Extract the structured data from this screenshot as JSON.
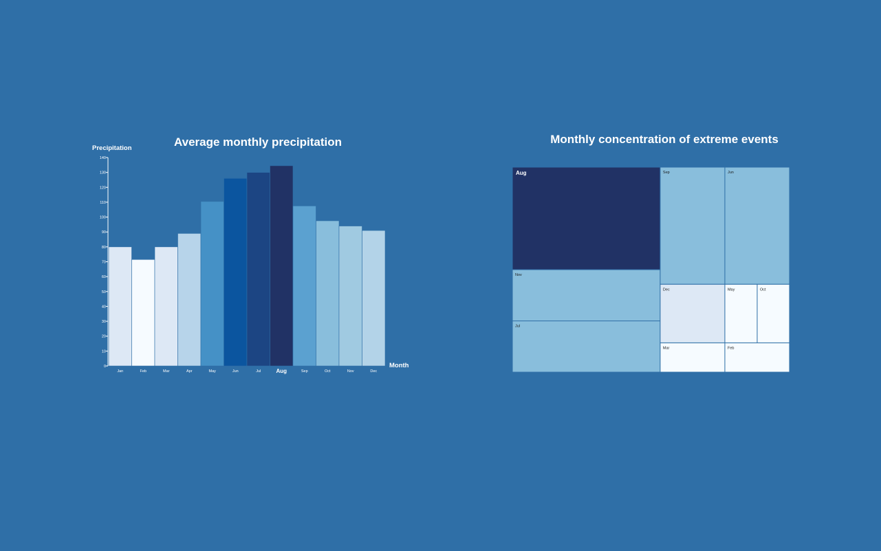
{
  "background_color": "#2f6fa7",
  "chart_data": [
    {
      "type": "bar",
      "title": "Average monthly precipitation",
      "xlabel": "Month",
      "ylabel": "Precipitation",
      "ylim": [
        0,
        140
      ],
      "yticks": [
        0,
        10,
        20,
        30,
        40,
        50,
        60,
        70,
        80,
        90,
        100,
        110,
        120,
        130,
        140
      ],
      "highlighted_category": "Aug",
      "categories": [
        "Jan",
        "Feb",
        "Mar",
        "Apr",
        "May",
        "Jun",
        "Jul",
        "Aug",
        "Sep",
        "Oct",
        "Nov",
        "Dec"
      ],
      "values": [
        80,
        71.5,
        80,
        89,
        110.5,
        126,
        130,
        134.5,
        107.5,
        97.5,
        94,
        91
      ],
      "bar_colors": [
        "#dde8f5",
        "#f6fbff",
        "#dde8f5",
        "#b7d4ea",
        "#4591c6",
        "#0b559f",
        "#1c4583",
        "#213265",
        "#5ba1d0",
        "#89bedc",
        "#a0cae1",
        "#b3d3e8"
      ],
      "grid": false,
      "legend": "none"
    },
    {
      "type": "treemap",
      "title": "Monthly concentration of extreme events",
      "highlighted_category": "Aug",
      "nodes": [
        {
          "label": "Aug",
          "value": 8,
          "color": "#213265"
        },
        {
          "label": "Nov",
          "value": 4,
          "color": "#89bedc"
        },
        {
          "label": "Jul",
          "value": 4,
          "color": "#89bedc"
        },
        {
          "label": "Sep",
          "value": 4,
          "color": "#89bedc"
        },
        {
          "label": "Jun",
          "value": 4,
          "color": "#89bedc"
        },
        {
          "label": "Dec",
          "value": 2,
          "color": "#dde8f5"
        },
        {
          "label": "May",
          "value": 1,
          "color": "#f6fbff"
        },
        {
          "label": "Oct",
          "value": 1,
          "color": "#f6fbff"
        },
        {
          "label": "Mar",
          "value": 1,
          "color": "#f6fbff"
        },
        {
          "label": "Feb",
          "value": 1,
          "color": "#f6fbff"
        }
      ]
    }
  ]
}
